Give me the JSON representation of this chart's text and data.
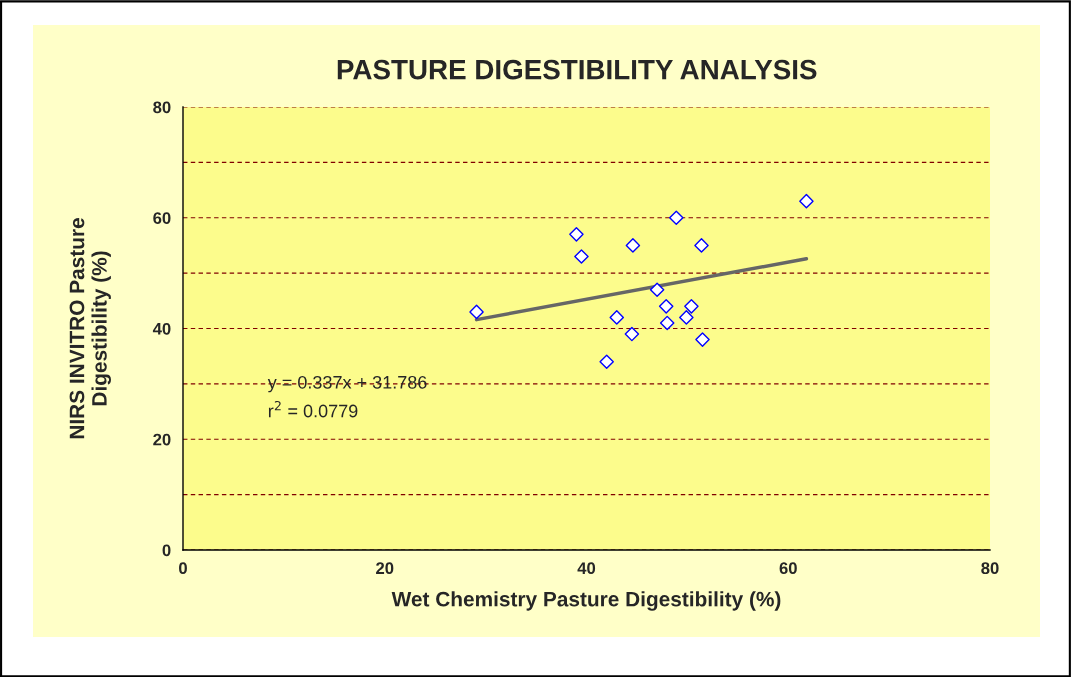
{
  "chart_data": {
    "type": "scatter",
    "title": "PASTURE DIGESTIBILITY ANALYSIS",
    "xlabel": "Wet Chemistry Pasture Digestibility (%)",
    "ylabel": "NIRS INVITRO Pasture\nDigestibility (%)",
    "series": [
      {
        "color": "#0000ff",
        "x": [
          29.1,
          39.0,
          39.5,
          42.0,
          43.0,
          44.5,
          44.6,
          47.0,
          47.9,
          48.0,
          48.9,
          49.9,
          50.4,
          51.4,
          51.5,
          61.8
        ],
        "values": [
          43,
          57,
          53,
          34,
          42,
          39,
          55,
          47,
          44,
          41,
          60,
          42,
          44,
          55,
          38,
          63
        ],
        "marker": "diamond"
      },
      {
        "type": "line",
        "color": "#666666",
        "x": [
          29.1,
          61.8
        ],
        "values": [
          41.6,
          52.6
        ],
        "marker": "none",
        "line_style": "solid"
      }
    ],
    "annotations": [
      "y = 0.337x + 31.786",
      "r$^{2}$ = 0.0779"
    ],
    "xlim": [
      0,
      80
    ],
    "ylim": [
      0,
      80
    ],
    "xticks": [
      0,
      20,
      40,
      60,
      80
    ],
    "yticks": [
      0,
      {
        "value": 10,
        "label": null
      },
      20,
      {
        "value": 30,
        "label": null
      },
      40,
      {
        "value": 50,
        "label": null
      },
      60,
      {
        "value": 70,
        "label": null
      },
      80
    ],
    "grid": "y",
    "legend": false
  }
}
